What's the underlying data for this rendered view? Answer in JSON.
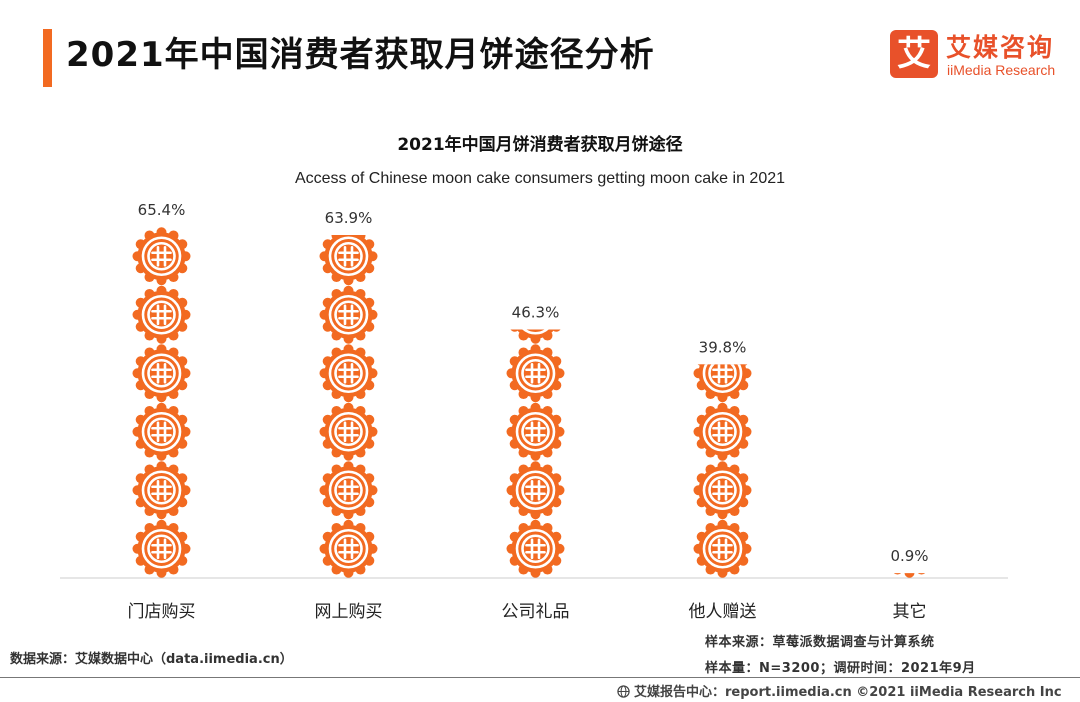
{
  "page": {
    "title": "2021年中国消费者获取月饼途径分析"
  },
  "logo": {
    "mark": "艾",
    "name_cn": "艾媒咨询",
    "name_en": "iiMedia Research"
  },
  "chart_data": {
    "type": "bar",
    "title": "2021年中国月饼消费者获取月饼途径",
    "subtitle": "Access of Chinese moon cake consumers getting moon cake in 2021",
    "categories": [
      "门店购买",
      "网上购买",
      "公司礼品",
      "他人赠送",
      "其它"
    ],
    "values": [
      65.4,
      63.9,
      46.3,
      39.8,
      0.9
    ],
    "value_labels": [
      "65.4%",
      "63.9%",
      "46.3%",
      "39.8%",
      "0.9%"
    ],
    "ylim": [
      0,
      70
    ],
    "grid": false,
    "legend": "none",
    "mark": "mooncake-icon-stack",
    "colors": {
      "mooncake": "#f26a21",
      "axis": "#cccccc"
    }
  },
  "footer": {
    "data_source": "数据来源：艾媒数据中心（data.iimedia.cn）",
    "sample_source": "样本来源：草莓派数据调查与计算系统",
    "sample_size": "样本量：N=3200；调研时间：2021年9月",
    "report_center": "艾媒报告中心：report.iimedia.cn   ©2021  iiMedia Research  Inc"
  }
}
